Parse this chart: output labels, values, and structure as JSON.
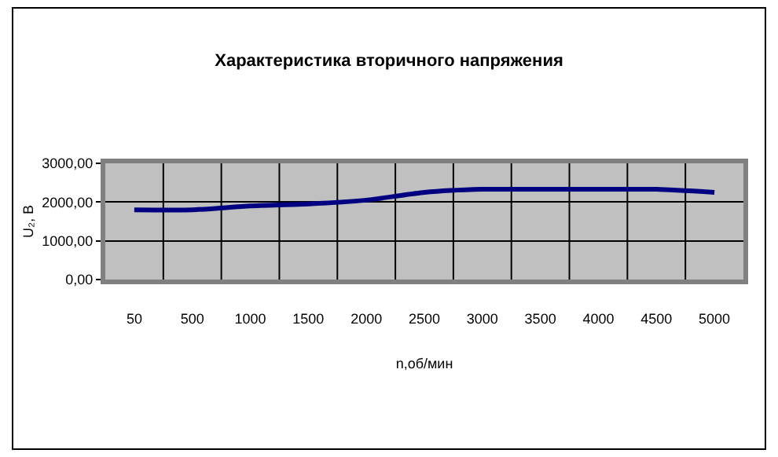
{
  "chart_data": {
    "type": "line",
    "title": "Характеристика вторичного напряжения",
    "xlabel": "n,об/мин",
    "ylabel": "U₂, В",
    "categories": [
      "50",
      "500",
      "1000",
      "1500",
      "2000",
      "2500",
      "3000",
      "3500",
      "4000",
      "4500",
      "5000"
    ],
    "series": [
      {
        "color": "#000080",
        "values": [
          1800,
          1800,
          1900,
          1950,
          2050,
          2250,
          2330,
          2330,
          2330,
          2330,
          2250
        ]
      }
    ],
    "ylim": [
      0,
      3000
    ],
    "yticks": [
      {
        "value": 0,
        "label": "0,00"
      },
      {
        "value": 1000,
        "label": "1000,00"
      },
      {
        "value": 2000,
        "label": "2000,00"
      },
      {
        "value": 3000,
        "label": "3000,00"
      }
    ],
    "grid": true,
    "marker": "none",
    "line_style": "solid"
  }
}
